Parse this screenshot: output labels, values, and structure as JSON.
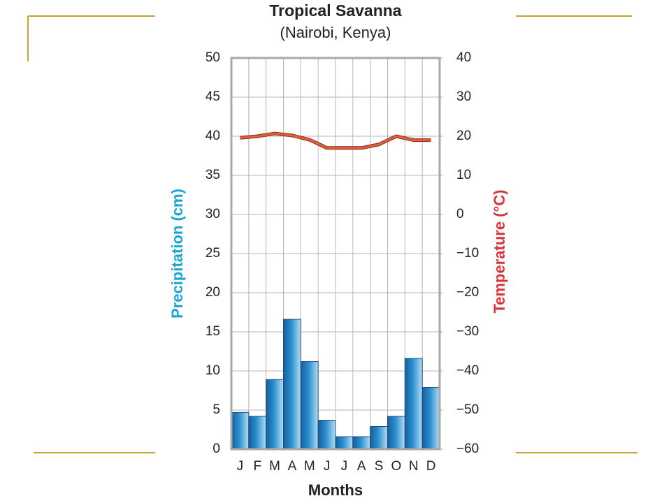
{
  "chart_data": {
    "type": "bar-line",
    "title": "Tropical Savanna",
    "subtitle": "(Nairobi, Kenya)",
    "x_label": "Months",
    "y_label": "Precipitation (cm)",
    "y2_label": "Temperature (°C)",
    "categories": [
      "J",
      "F",
      "M",
      "A",
      "M",
      "J",
      "J",
      "A",
      "S",
      "O",
      "N",
      "D"
    ],
    "series": [
      {
        "name": "Precipitation",
        "type": "bar",
        "axis": "y",
        "color": "#2a8fd0",
        "values": [
          4.7,
          4.2,
          8.9,
          16.6,
          11.2,
          3.7,
          1.6,
          1.6,
          2.9,
          4.2,
          11.6,
          7.9
        ]
      },
      {
        "name": "Temperature",
        "type": "line",
        "axis": "y2",
        "color": "#e0603a",
        "values": [
          19.6,
          20,
          20.7,
          20.2,
          19.1,
          17,
          17,
          17,
          17.9,
          20,
          19,
          19
        ]
      }
    ],
    "ylim": [
      0,
      50
    ],
    "yticks": [
      0,
      5,
      10,
      15,
      20,
      25,
      30,
      35,
      40,
      45,
      50
    ],
    "y2lim": [
      -60,
      40
    ],
    "y2ticks": [
      {
        "value": -60,
        "label": "−60"
      },
      {
        "value": -50,
        "label": "−50"
      },
      {
        "value": -40,
        "label": "−40"
      },
      {
        "value": -30,
        "label": "−30"
      },
      {
        "value": -20,
        "label": "−20"
      },
      {
        "value": -10,
        "label": "−10"
      },
      0,
      10,
      20,
      30,
      40
    ],
    "y_label_color": "#1aa3d6",
    "y2_label_color": "#d8343a",
    "grid": true
  }
}
